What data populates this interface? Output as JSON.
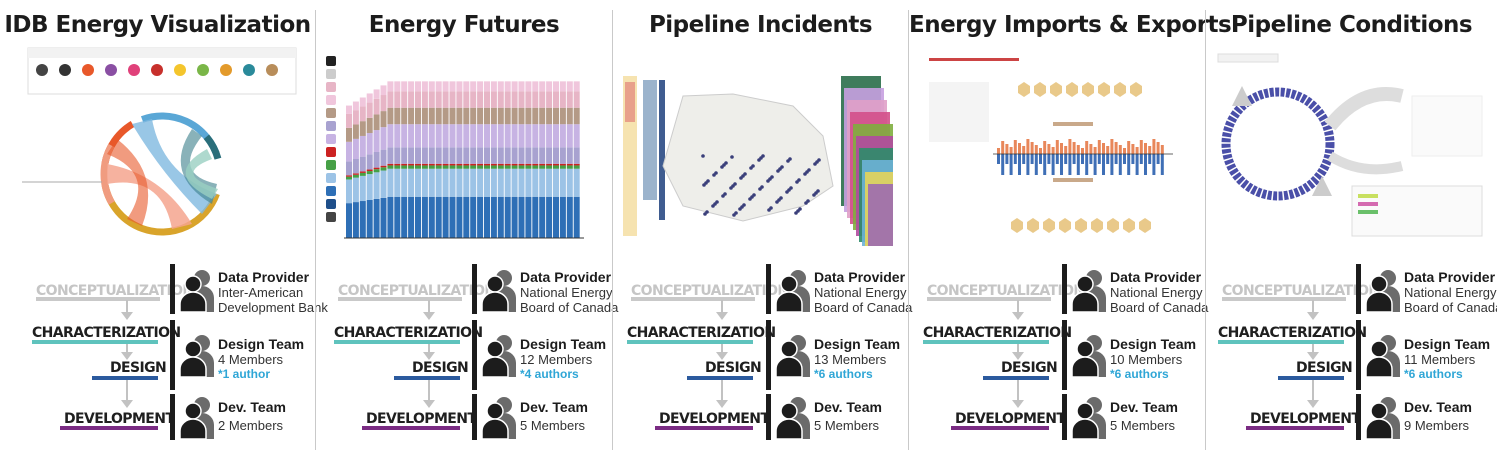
{
  "stages": {
    "conceptualization": "CONCEPTUALIZATION",
    "characterization": "CHARACTERIZATION",
    "design": "DESIGN",
    "development": "DEVELOPMENT"
  },
  "colors": {
    "characterization": "#5fc3bd",
    "design": "#2b5a9e",
    "development": "#7a2b83",
    "conceptualization": "#c9c9c9",
    "author": "#2fa6d6"
  },
  "panels": [
    {
      "title": "IDB Energy Visualization",
      "provider": {
        "label": "Data Provider",
        "line1": "Inter-American",
        "line2": "Development Bank"
      },
      "design_team": {
        "label": "Design Team",
        "members": "4 Members",
        "authors": "*1 author"
      },
      "dev_team": {
        "label": "Dev. Team",
        "members": "2 Members"
      }
    },
    {
      "title": "Energy Futures",
      "provider": {
        "label": "Data Provider",
        "line1": "National Energy",
        "line2": "Board of Canada"
      },
      "design_team": {
        "label": "Design Team",
        "members": "12 Members",
        "authors": "*4 authors"
      },
      "dev_team": {
        "label": "Dev. Team",
        "members": "5 Members"
      }
    },
    {
      "title": "Pipeline Incidents",
      "provider": {
        "label": "Data Provider",
        "line1": "National Energy",
        "line2": "Board of Canada"
      },
      "design_team": {
        "label": "Design Team",
        "members": "13 Members",
        "authors": "*6 authors"
      },
      "dev_team": {
        "label": "Dev. Team",
        "members": "5 Members"
      }
    },
    {
      "title": "Energy Imports & Exports",
      "provider": {
        "label": "Data Provider",
        "line1": "National Energy",
        "line2": "Board of Canada"
      },
      "design_team": {
        "label": "Design Team",
        "members": "10 Members",
        "authors": "*6 authors"
      },
      "dev_team": {
        "label": "Dev. Team",
        "members": "5 Members"
      }
    },
    {
      "title": "Pipeline Conditions",
      "provider": {
        "label": "Data Provider",
        "line1": "National Energy",
        "line2": "Board of Canada"
      },
      "design_team": {
        "label": "Design Team",
        "members": "11 Members",
        "authors": "*6 authors"
      },
      "dev_team": {
        "label": "Dev. Team",
        "members": "9 Members"
      }
    }
  ]
}
